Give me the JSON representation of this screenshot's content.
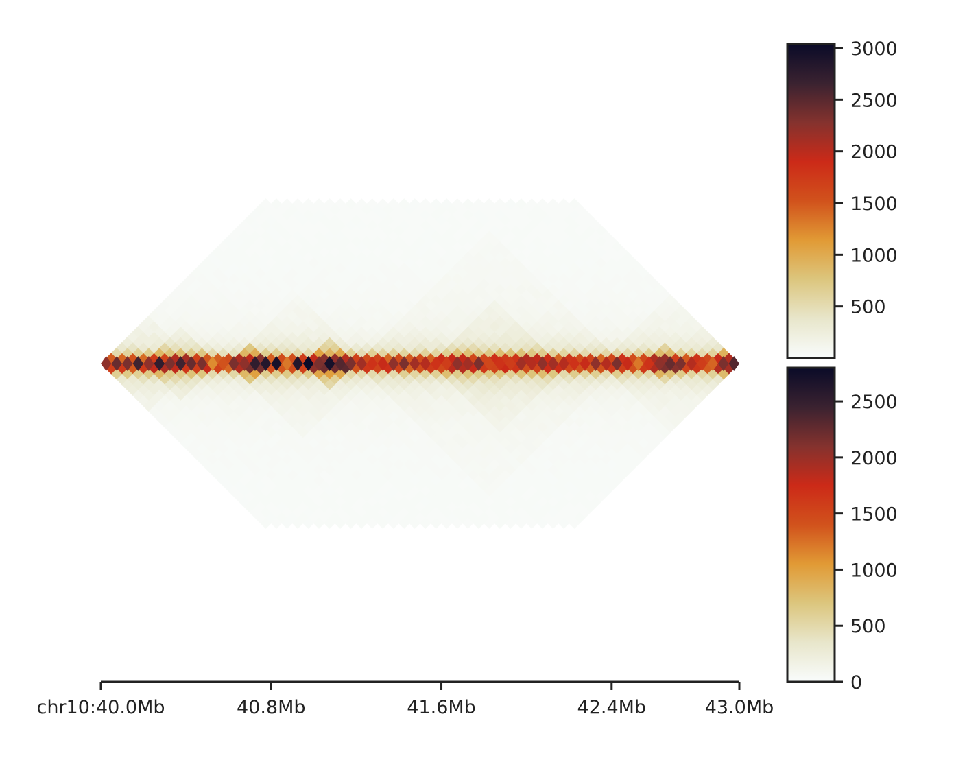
{
  "chart_data": {
    "type": "heatmap",
    "subtype": "hic-contact-map-mirrored",
    "region": {
      "chrom": "chr10",
      "start_mb": 40.0,
      "end_mb": 43.0
    },
    "x_ticks": [
      {
        "value": 40.0,
        "label": "chr10:40.0Mb"
      },
      {
        "value": 40.8,
        "label": "40.8Mb"
      },
      {
        "value": 41.6,
        "label": "41.6Mb"
      },
      {
        "value": 42.4,
        "label": "42.4Mb"
      },
      {
        "value": 43.0,
        "label": "43.0Mb"
      }
    ],
    "max_distance_mb": 1.5,
    "bin_size_mb": 0.05,
    "panels": [
      {
        "position": "top",
        "colorbar": {
          "min": 0,
          "max": 3000,
          "ticks": [
            500,
            1000,
            1500,
            2000,
            2500,
            3000
          ]
        },
        "domains": [
          {
            "start": 40.2,
            "end": 40.55,
            "strength": 280
          },
          {
            "start": 40.0,
            "end": 40.45,
            "strength": 170
          },
          {
            "start": 40.6,
            "end": 40.78,
            "strength": 650
          },
          {
            "start": 40.95,
            "end": 41.2,
            "strength": 580
          },
          {
            "start": 40.6,
            "end": 41.25,
            "strength": 140
          },
          {
            "start": 41.55,
            "end": 42.15,
            "strength": 200
          },
          {
            "start": 41.2,
            "end": 42.45,
            "strength": 120
          },
          {
            "start": 42.55,
            "end": 42.75,
            "strength": 380
          },
          {
            "start": 42.85,
            "end": 43.0,
            "strength": 420
          },
          {
            "start": 42.35,
            "end": 43.0,
            "strength": 140
          }
        ],
        "diagonal": [
          2200,
          2400,
          2300,
          2500,
          2600,
          2200,
          2700,
          2500,
          2300,
          2600,
          2400,
          2500,
          2300,
          1200,
          1500,
          2000,
          2300,
          2200,
          2700,
          2600,
          2800,
          2900,
          1300,
          1800,
          2800,
          3000,
          2300,
          2700,
          2900,
          2500,
          2300,
          2400,
          2100,
          1800,
          1900,
          2000,
          2200,
          2300,
          2100,
          1900,
          2000,
          1800,
          1700,
          2000,
          2200,
          2100,
          2300,
          2000,
          1600,
          1800,
          1700,
          1900,
          2100,
          2000,
          2200,
          2300,
          2100,
          2000,
          1800,
          1700,
          1900,
          2200,
          2000,
          2100,
          2300,
          1900,
          1300,
          1500,
          1800,
          2200,
          2400,
          2100,
          2300,
          2000,
          1700,
          1200,
          1400,
          2300,
          2500,
          2400
        ]
      },
      {
        "position": "bottom",
        "colorbar": {
          "min": 0,
          "max": 2800,
          "ticks": [
            0,
            500,
            1000,
            1500,
            2000,
            2500
          ]
        },
        "domains": [
          {
            "start": 40.2,
            "end": 40.55,
            "strength": 220
          },
          {
            "start": 40.0,
            "end": 40.45,
            "strength": 150
          },
          {
            "start": 40.6,
            "end": 40.78,
            "strength": 550
          },
          {
            "start": 40.95,
            "end": 41.2,
            "strength": 500
          },
          {
            "start": 40.6,
            "end": 41.3,
            "strength": 130
          },
          {
            "start": 41.55,
            "end": 42.2,
            "strength": 170
          },
          {
            "start": 41.2,
            "end": 42.45,
            "strength": 110
          },
          {
            "start": 42.55,
            "end": 42.75,
            "strength": 320
          },
          {
            "start": 42.85,
            "end": 43.0,
            "strength": 360
          },
          {
            "start": 42.35,
            "end": 43.0,
            "strength": 120
          }
        ]
      }
    ],
    "colormap": [
      "#f9fcfc",
      "#e8e6cb",
      "#dcc67e",
      "#e19a35",
      "#d1521c",
      "#cc2a18",
      "#84322e",
      "#3a2230",
      "#0a0b28"
    ]
  }
}
